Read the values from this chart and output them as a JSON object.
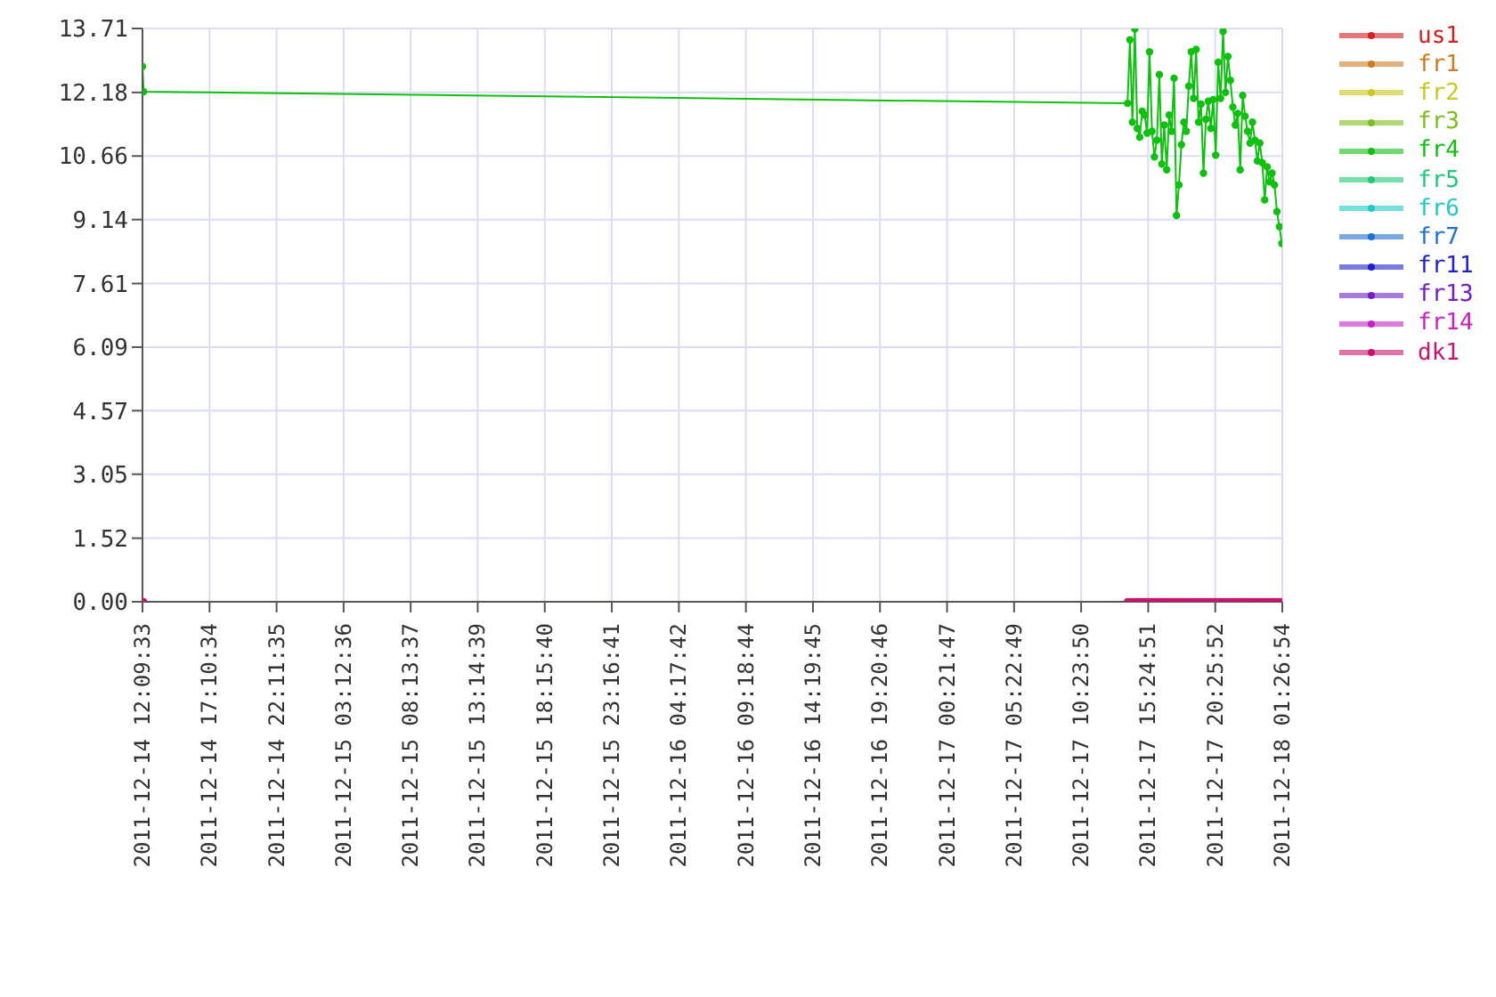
{
  "chart_data": {
    "type": "line",
    "legend": "right",
    "grid": true,
    "marker": "circle",
    "line_style": "solid",
    "ylim": [
      0,
      13.71
    ],
    "yticks": [
      {
        "value": 0,
        "label": "0.00"
      },
      {
        "value": 1.52,
        "label": "1.52"
      },
      {
        "value": 3.05,
        "label": "3.05"
      },
      {
        "value": 4.57,
        "label": "4.57"
      },
      {
        "value": 6.09,
        "label": "6.09"
      },
      {
        "value": 7.61,
        "label": "7.61"
      },
      {
        "value": 9.14,
        "label": "9.14"
      },
      {
        "value": 10.66,
        "label": "10.66"
      },
      {
        "value": 12.18,
        "label": "12.18"
      },
      {
        "value": 13.71,
        "label": "13.71"
      }
    ],
    "xlim": [
      "2011-12-14T12:09:33",
      "2011-12-18T01:26:54"
    ],
    "xticks": [
      {
        "value": "2011-12-14T12:09:33",
        "label": "2011-12-14 12:09:33"
      },
      {
        "value": "2011-12-14T17:10:34",
        "label": "2011-12-14 17:10:34"
      },
      {
        "value": "2011-12-14T22:11:35",
        "label": "2011-12-14 22:11:35"
      },
      {
        "value": "2011-12-15T03:12:36",
        "label": "2011-12-15 03:12:36"
      },
      {
        "value": "2011-12-15T08:13:37",
        "label": "2011-12-15 08:13:37"
      },
      {
        "value": "2011-12-15T13:14:39",
        "label": "2011-12-15 13:14:39"
      },
      {
        "value": "2011-12-15T18:15:40",
        "label": "2011-12-15 18:15:40"
      },
      {
        "value": "2011-12-15T23:16:41",
        "label": "2011-12-15 23:16:41"
      },
      {
        "value": "2011-12-16T04:17:42",
        "label": "2011-12-16 04:17:42"
      },
      {
        "value": "2011-12-16T09:18:44",
        "label": "2011-12-16 09:18:44"
      },
      {
        "value": "2011-12-16T14:19:45",
        "label": "2011-12-16 14:19:45"
      },
      {
        "value": "2011-12-16T19:20:46",
        "label": "2011-12-16 19:20:46"
      },
      {
        "value": "2011-12-17T00:21:47",
        "label": "2011-12-17 00:21:47"
      },
      {
        "value": "2011-12-17T05:22:49",
        "label": "2011-12-17 05:22:49"
      },
      {
        "value": "2011-12-17T10:23:50",
        "label": "2011-12-17 10:23:50"
      },
      {
        "value": "2011-12-17T15:24:51",
        "label": "2011-12-17 15:24:51"
      },
      {
        "value": "2011-12-17T20:25:52",
        "label": "2011-12-17 20:25:52"
      },
      {
        "value": "2011-12-18T01:26:54",
        "label": "2011-12-18 01:26:54"
      }
    ],
    "x": [
      "2011-12-14T12:09:33",
      "2011-12-14T12:14:33",
      "2011-12-17T13:52",
      "2011-12-17T14:03",
      "2011-12-17T14:14",
      "2011-12-17T14:25",
      "2011-12-17T14:36",
      "2011-12-17T14:47",
      "2011-12-17T14:58",
      "2011-12-17T15:09",
      "2011-12-17T15:20",
      "2011-12-17T15:31",
      "2011-12-17T15:42",
      "2011-12-17T15:53",
      "2011-12-17T16:04",
      "2011-12-17T16:15",
      "2011-12-17T16:26",
      "2011-12-17T16:37",
      "2011-12-17T16:48",
      "2011-12-17T16:59",
      "2011-12-17T17:10",
      "2011-12-17T17:21",
      "2011-12-17T17:32",
      "2011-12-17T17:43",
      "2011-12-17T17:54",
      "2011-12-17T18:05",
      "2011-12-17T18:16",
      "2011-12-17T18:27",
      "2011-12-17T18:38",
      "2011-12-17T18:49",
      "2011-12-17T19:00",
      "2011-12-17T19:11",
      "2011-12-17T19:22",
      "2011-12-17T19:33",
      "2011-12-17T19:44",
      "2011-12-17T19:55",
      "2011-12-17T20:06",
      "2011-12-17T20:17",
      "2011-12-17T20:28",
      "2011-12-17T20:39",
      "2011-12-17T20:50",
      "2011-12-17T21:01",
      "2011-12-17T21:12",
      "2011-12-17T21:23",
      "2011-12-17T21:34",
      "2011-12-17T21:45",
      "2011-12-17T21:56",
      "2011-12-17T22:07",
      "2011-12-17T22:18",
      "2011-12-17T22:29",
      "2011-12-17T22:40",
      "2011-12-17T22:51",
      "2011-12-17T23:02",
      "2011-12-17T23:13",
      "2011-12-17T23:24",
      "2011-12-17T23:35",
      "2011-12-17T23:46",
      "2011-12-17T23:57",
      "2011-12-18T00:08",
      "2011-12-18T00:19",
      "2011-12-18T00:30",
      "2011-12-18T00:41",
      "2011-12-18T00:52",
      "2011-12-18T01:03",
      "2011-12-18T01:14",
      "2011-12-18T01:25"
    ],
    "series": [
      {
        "name": "us1",
        "color": "#d42020",
        "values": [
          null,
          null,
          null,
          null,
          null,
          null,
          null,
          null,
          null,
          null,
          null,
          null,
          null,
          null,
          null,
          null,
          null,
          null,
          null,
          null,
          null,
          null,
          null,
          null,
          null,
          null,
          null,
          null,
          null,
          null,
          null,
          null,
          null,
          null,
          null,
          null,
          null,
          null,
          null,
          null,
          null,
          null,
          null,
          null,
          null,
          null,
          null,
          null,
          null,
          null,
          null,
          null,
          null,
          null,
          null,
          null,
          null,
          null,
          null,
          null,
          null,
          null,
          null,
          null,
          null,
          null
        ]
      },
      {
        "name": "fr1",
        "color": "#d07a20",
        "values": [
          null,
          null,
          null,
          null,
          null,
          null,
          null,
          null,
          null,
          null,
          null,
          null,
          null,
          null,
          null,
          null,
          null,
          null,
          null,
          null,
          null,
          null,
          null,
          null,
          null,
          null,
          null,
          null,
          null,
          null,
          null,
          null,
          null,
          null,
          null,
          null,
          null,
          null,
          null,
          null,
          null,
          null,
          null,
          null,
          null,
          null,
          null,
          null,
          null,
          null,
          null,
          null,
          null,
          null,
          null,
          null,
          null,
          null,
          null,
          null,
          null,
          null,
          null,
          null,
          null,
          null
        ]
      },
      {
        "name": "fr2",
        "color": "#c8c820",
        "values": [
          null,
          null,
          null,
          null,
          null,
          null,
          null,
          null,
          null,
          null,
          null,
          null,
          null,
          null,
          null,
          null,
          null,
          null,
          null,
          null,
          null,
          null,
          null,
          null,
          null,
          null,
          null,
          null,
          null,
          null,
          null,
          null,
          null,
          null,
          null,
          null,
          null,
          null,
          null,
          null,
          null,
          null,
          null,
          null,
          null,
          null,
          null,
          null,
          null,
          null,
          null,
          null,
          null,
          null,
          null,
          null,
          null,
          null,
          null,
          null,
          null,
          null,
          null,
          null,
          null,
          null
        ]
      },
      {
        "name": "fr3",
        "color": "#7ac020",
        "values": [
          null,
          null,
          null,
          null,
          null,
          null,
          null,
          null,
          null,
          null,
          null,
          null,
          null,
          null,
          null,
          null,
          null,
          null,
          null,
          null,
          null,
          null,
          null,
          null,
          null,
          null,
          null,
          null,
          null,
          null,
          null,
          null,
          null,
          null,
          null,
          null,
          null,
          null,
          null,
          null,
          null,
          null,
          null,
          null,
          null,
          null,
          null,
          null,
          null,
          null,
          null,
          null,
          null,
          null,
          null,
          null,
          null,
          null,
          null,
          null,
          null,
          null,
          null,
          null,
          null,
          null
        ]
      },
      {
        "name": "fr4",
        "color": "#10c010",
        "values": [
          12.8,
          12.2,
          11.92,
          13.44,
          11.47,
          13.7,
          11.32,
          11.11,
          11.73,
          11.64,
          11.21,
          13.15,
          11.25,
          10.64,
          11.04,
          12.61,
          10.47,
          11.4,
          10.33,
          11.64,
          11.25,
          12.52,
          9.24,
          9.97,
          10.93,
          11.47,
          11.25,
          12.33,
          13.15,
          12.04,
          13.21,
          11.47,
          11.9,
          10.25,
          11.54,
          11.97,
          11.32,
          12.01,
          10.68,
          12.9,
          12.04,
          13.64,
          12.18,
          13.04,
          12.47,
          11.83,
          11.4,
          11.68,
          10.33,
          12.11,
          11.61,
          11.25,
          10.97,
          11.47,
          11.04,
          10.54,
          10.97,
          10.5,
          9.61,
          10.4,
          10.04,
          10.25,
          9.97,
          9.33,
          8.97,
          8.57
        ]
      },
      {
        "name": "fr5",
        "color": "#20c878",
        "values": [
          null,
          null,
          null,
          null,
          null,
          null,
          null,
          null,
          null,
          null,
          null,
          null,
          null,
          null,
          null,
          null,
          null,
          null,
          null,
          null,
          null,
          null,
          null,
          null,
          null,
          null,
          null,
          null,
          null,
          null,
          null,
          null,
          null,
          null,
          null,
          null,
          null,
          null,
          null,
          null,
          null,
          null,
          null,
          null,
          null,
          null,
          null,
          null,
          null,
          null,
          null,
          null,
          null,
          null,
          null,
          null,
          null,
          null,
          null,
          null,
          null,
          null,
          null,
          null,
          null,
          null
        ]
      },
      {
        "name": "fr6",
        "color": "#20c8c8",
        "values": [
          null,
          null,
          null,
          null,
          null,
          null,
          null,
          null,
          null,
          null,
          null,
          null,
          null,
          null,
          null,
          null,
          null,
          null,
          null,
          null,
          null,
          null,
          null,
          null,
          null,
          null,
          null,
          null,
          null,
          null,
          null,
          null,
          null,
          null,
          null,
          null,
          null,
          null,
          null,
          null,
          null,
          null,
          null,
          null,
          null,
          null,
          null,
          null,
          null,
          null,
          null,
          null,
          null,
          null,
          null,
          null,
          null,
          null,
          null,
          null,
          null,
          null,
          null,
          null,
          null,
          null
        ]
      },
      {
        "name": "fr7",
        "color": "#2070d0",
        "values": [
          null,
          null,
          null,
          null,
          null,
          null,
          null,
          null,
          null,
          null,
          null,
          null,
          null,
          null,
          null,
          null,
          null,
          null,
          null,
          null,
          null,
          null,
          null,
          null,
          null,
          null,
          null,
          null,
          null,
          null,
          null,
          null,
          null,
          null,
          null,
          null,
          null,
          null,
          null,
          null,
          null,
          null,
          null,
          null,
          null,
          null,
          null,
          null,
          null,
          null,
          null,
          null,
          null,
          null,
          null,
          null,
          null,
          null,
          null,
          null,
          null,
          null,
          null,
          null,
          null,
          null
        ]
      },
      {
        "name": "fr11",
        "color": "#2020c8",
        "values": [
          null,
          null,
          null,
          null,
          null,
          null,
          null,
          null,
          null,
          null,
          null,
          null,
          null,
          null,
          null,
          null,
          null,
          null,
          null,
          null,
          null,
          null,
          null,
          null,
          null,
          null,
          null,
          null,
          null,
          null,
          null,
          null,
          null,
          null,
          null,
          null,
          null,
          null,
          null,
          null,
          null,
          null,
          null,
          null,
          null,
          null,
          null,
          null,
          null,
          null,
          null,
          null,
          null,
          null,
          null,
          null,
          null,
          null,
          null,
          null,
          null,
          null,
          null,
          null,
          null,
          null
        ]
      },
      {
        "name": "fr13",
        "color": "#7020c8",
        "values": [
          null,
          null,
          null,
          null,
          null,
          null,
          null,
          null,
          null,
          null,
          null,
          null,
          null,
          null,
          null,
          null,
          null,
          null,
          null,
          null,
          null,
          null,
          null,
          null,
          null,
          null,
          null,
          null,
          null,
          null,
          null,
          null,
          null,
          null,
          null,
          null,
          null,
          null,
          null,
          null,
          null,
          null,
          null,
          null,
          null,
          null,
          null,
          null,
          null,
          null,
          null,
          null,
          null,
          null,
          null,
          null,
          null,
          null,
          null,
          null,
          null,
          null,
          null,
          null,
          null,
          null
        ]
      },
      {
        "name": "fr14",
        "color": "#c820c8",
        "values": [
          null,
          null,
          null,
          null,
          null,
          null,
          null,
          null,
          null,
          null,
          null,
          null,
          null,
          null,
          null,
          null,
          null,
          null,
          null,
          null,
          null,
          null,
          null,
          null,
          null,
          null,
          null,
          null,
          null,
          null,
          null,
          null,
          null,
          null,
          null,
          null,
          null,
          null,
          null,
          null,
          null,
          null,
          null,
          null,
          null,
          null,
          null,
          null,
          null,
          null,
          null,
          null,
          null,
          null,
          null,
          null,
          null,
          null,
          null,
          null,
          null,
          null,
          null,
          null,
          null,
          null
        ]
      },
      {
        "name": "dk1",
        "color": "#c81470",
        "values": [
          0,
          0,
          0,
          0,
          0,
          0,
          0,
          0,
          0,
          0,
          0,
          0,
          0,
          0,
          0,
          0,
          0,
          0,
          0,
          0,
          0,
          0,
          0,
          0,
          0,
          0,
          0,
          0,
          0,
          0,
          0,
          0,
          0,
          0,
          0,
          0,
          0,
          0,
          0,
          0,
          0,
          0,
          0,
          0,
          0,
          0,
          0,
          0,
          0,
          0,
          0,
          0,
          0,
          0,
          0,
          0,
          0,
          0,
          0,
          0,
          0,
          0,
          0,
          0,
          0,
          0
        ]
      }
    ]
  }
}
